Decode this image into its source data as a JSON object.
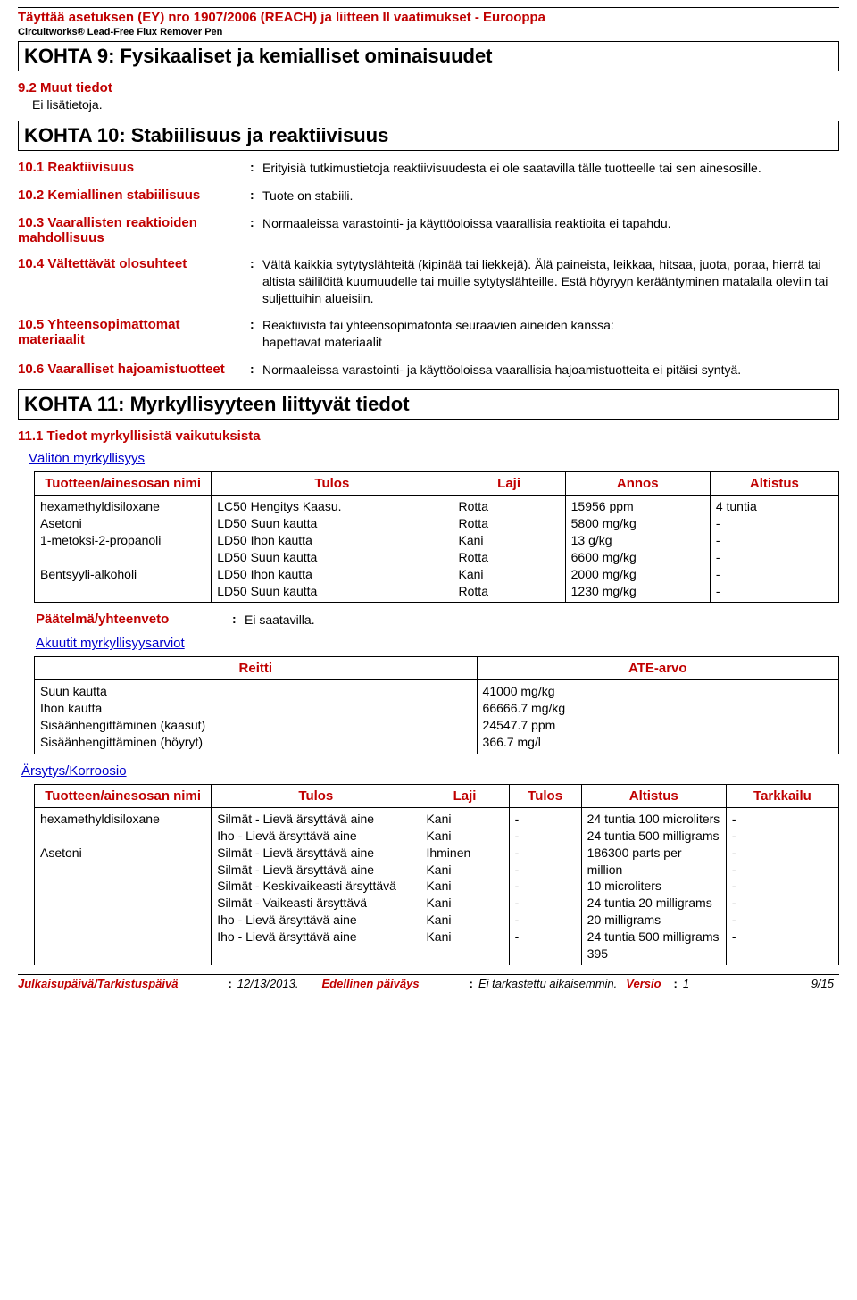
{
  "header": {
    "regulation": "Täyttää asetuksen (EY) nro 1907/2006 (REACH) ja liitteen II vaatimukset - Eurooppa",
    "product": "Circuitworks® Lead-Free Flux Remover Pen"
  },
  "section9": {
    "title": "KOHTA 9: Fysikaaliset ja kemialliset ominaisuudet",
    "sub": "9.2 Muut tiedot",
    "body": "Ei lisätietoja."
  },
  "section10": {
    "title": "KOHTA 10: Stabiilisuus ja reaktiivisuus",
    "items": {
      "i1": {
        "label": "10.1 Reaktiivisuus",
        "value": "Erityisiä tutkimustietoja reaktiivisuudesta ei ole saatavilla tälle tuotteelle tai sen ainesosille."
      },
      "i2": {
        "label": "10.2 Kemiallinen stabiilisuus",
        "value": "Tuote on stabiili."
      },
      "i3": {
        "label": "10.3 Vaarallisten reaktioiden mahdollisuus",
        "value": "Normaaleissa varastointi- ja käyttöoloissa vaarallisia reaktioita ei tapahdu."
      },
      "i4": {
        "label": "10.4 Vältettävät olosuhteet",
        "value": "Vältä kaikkia sytytyslähteitä (kipinää tai liekkejä). Älä paineista, leikkaa, hitsaa, juota, poraa, hierrä tai altista säililöitä kuumuudelle tai muille sytytyslähteille. Estä höyryyn kerääntyminen matalalla oleviin tai suljettuihin alueisiin."
      },
      "i5": {
        "label": "10.5 Yhteensopimattomat materiaalit",
        "value": "Reaktiivista tai yhteensopimatonta seuraavien aineiden kanssa:\nhapettavat materiaalit"
      },
      "i6": {
        "label": "10.6 Vaaralliset hajoamistuotteet",
        "value": "Normaaleissa varastointi- ja käyttöoloissa vaarallisia hajoamistuotteita ei pitäisi syntyä."
      }
    }
  },
  "section11": {
    "title": "KOHTA 11: Myrkyllisyyteen liittyvät tiedot",
    "sub": "11.1 Tiedot myrkyllisistä vaikutuksista",
    "acute_heading": "Välitön myrkyllisyys",
    "table1": {
      "headers": [
        "Tuotteen/ainesosan nimi",
        "Tulos",
        "Laji",
        "Annos",
        "Altistus"
      ],
      "rows": [
        [
          "hexamethyldisiloxane",
          "LC50 Hengitys Kaasu.",
          "Rotta",
          "15956 ppm",
          "4 tuntia"
        ],
        [
          "Asetoni",
          "LD50 Suun kautta",
          "Rotta",
          "5800 mg/kg",
          "-"
        ],
        [
          "1-metoksi-2-propanoli",
          "LD50 Ihon kautta",
          "Kani",
          "13 g/kg",
          "-"
        ],
        [
          "",
          "LD50 Suun kautta",
          "Rotta",
          "6600 mg/kg",
          "-"
        ],
        [
          "Bentsyyli-alkoholi",
          "LD50 Ihon kautta",
          "Kani",
          "2000 mg/kg",
          "-"
        ],
        [
          "",
          "LD50 Suun kautta",
          "Rotta",
          "1230 mg/kg",
          "-"
        ]
      ]
    },
    "conclusion": {
      "label": "Päätelmä/yhteenveto",
      "value": "Ei saatavilla."
    },
    "est_heading": "Akuutit myrkyllisyysarviot",
    "table2": {
      "headers": [
        "Reitti",
        "ATE-arvo"
      ],
      "rows": [
        [
          "Suun kautta",
          "41000 mg/kg"
        ],
        [
          "Ihon kautta",
          "66666.7 mg/kg"
        ],
        [
          "Sisäänhengittäminen (kaasut)",
          "24547.7 ppm"
        ],
        [
          "Sisäänhengittäminen (höyryt)",
          "366.7 mg/l"
        ]
      ]
    },
    "irrit_heading": "Ärsytys/Korroosio",
    "table3": {
      "headers": [
        "Tuotteen/ainesosan nimi",
        "Tulos",
        "Laji",
        "Tulos",
        "Altistus",
        "Tarkkailu"
      ],
      "rows": [
        [
          "hexamethyldisiloxane",
          "Silmät - Lievä ärsyttävä aine",
          "Kani",
          "-",
          "24 tuntia 100 microliters",
          "-"
        ],
        [
          "",
          "Iho - Lievä ärsyttävä aine",
          "Kani",
          "-",
          "24 tuntia 500 milligrams",
          "-"
        ],
        [
          "Asetoni",
          "Silmät - Lievä ärsyttävä aine",
          "Ihminen",
          "-",
          "186300 parts per million",
          "-"
        ],
        [
          "",
          "Silmät - Lievä ärsyttävä aine",
          "Kani",
          "-",
          "10 microliters",
          "-"
        ],
        [
          "",
          "Silmät - Keskivaikeasti ärsyttävä",
          "Kani",
          "-",
          "24 tuntia 20 milligrams",
          "-"
        ],
        [
          "",
          "Silmät - Vaikeasti ärsyttävä",
          "Kani",
          "-",
          "20 milligrams",
          "-"
        ],
        [
          "",
          "Iho - Lievä ärsyttävä aine",
          "Kani",
          "-",
          "24 tuntia 500 milligrams",
          "-"
        ],
        [
          "",
          "Iho - Lievä ärsyttävä aine",
          "Kani",
          "-",
          "395",
          "-"
        ]
      ]
    }
  },
  "footer": {
    "pub_label": "Julkaisupäivä/Tarkistuspäivä",
    "pub_value": "12/13/2013.",
    "prev_label": "Edellinen päiväys",
    "prev_value": "Ei tarkastettu aikaisemmin.",
    "ver_label": "Versio",
    "ver_value": "1",
    "page": "9/15"
  }
}
